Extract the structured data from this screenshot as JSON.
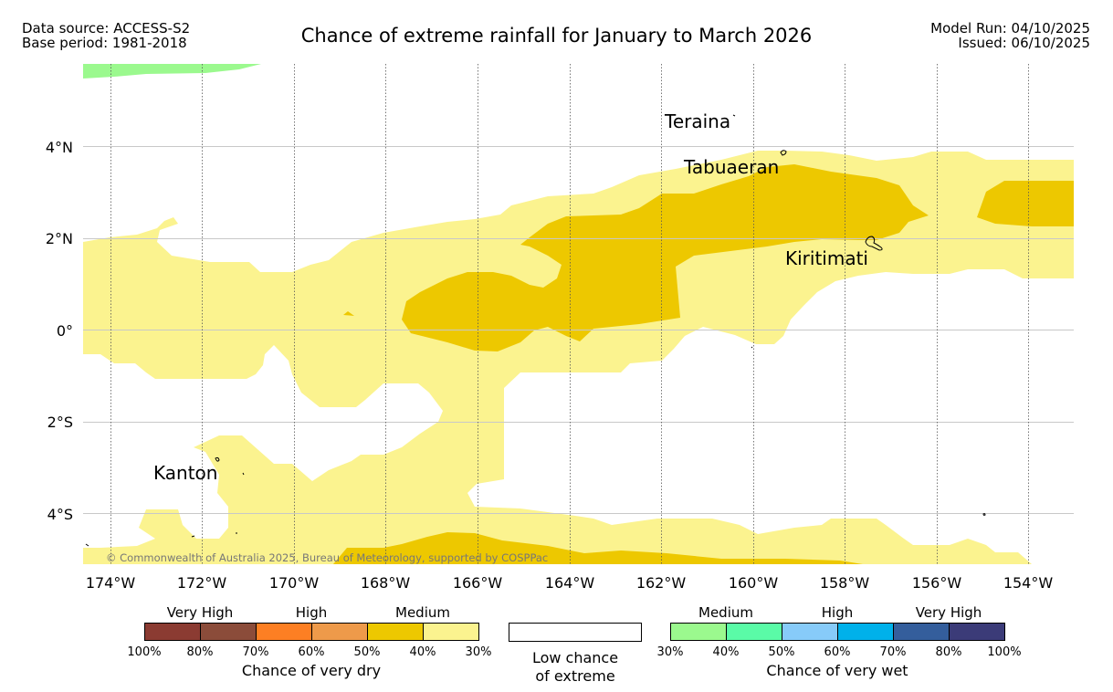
{
  "header": {
    "source": "Data source: ACCESS-S2",
    "base_period": "Base period: 1981-2018",
    "title": "Chance of extreme rainfall for January to March 2026",
    "model_run": "Model Run: 04/10/2025",
    "issued": "Issued: 06/10/2025"
  },
  "map": {
    "lat_labels": [
      "4°N",
      "2°N",
      "0°",
      "2°S",
      "4°S"
    ],
    "lon_labels": [
      "174°W",
      "172°W",
      "170°W",
      "168°W",
      "166°W",
      "164°W",
      "162°W",
      "160°W",
      "158°W",
      "156°W",
      "154°W"
    ],
    "places": [
      "Teraina",
      "Tabuaeran",
      "Kiritimati",
      "Kanton"
    ],
    "copyright": "© Commonwealth of Australia 2025, Bureau of Meteorology, supported by COSPPac",
    "colors": {
      "dry_40_50": "#edc800",
      "dry_30_40": "#fbf38f",
      "wet_30_40": "#9bf98e"
    }
  },
  "legend": {
    "dry": {
      "categories": [
        "Very High",
        "High",
        "Medium"
      ],
      "ticks": [
        "100%",
        "80%",
        "70%",
        "60%",
        "50%",
        "40%",
        "30%"
      ],
      "colors": [
        "#8b3b32",
        "#8b4c3a",
        "#fd7f23",
        "#ee9a4a",
        "#edc800",
        "#fbf38f"
      ],
      "title": "Chance of very dry"
    },
    "low": {
      "line1": "Low chance",
      "line2": "of extreme"
    },
    "wet": {
      "categories": [
        "Medium",
        "High",
        "Very High"
      ],
      "ticks": [
        "30%",
        "40%",
        "50%",
        "60%",
        "70%",
        "80%",
        "100%"
      ],
      "colors": [
        "#9bf98e",
        "#5afba7",
        "#87cbf9",
        "#00b1ea",
        "#345e9c",
        "#3b3b78"
      ],
      "title": "Chance of very wet"
    }
  }
}
